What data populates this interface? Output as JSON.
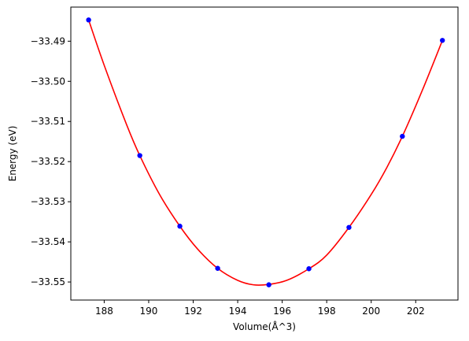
{
  "chart_data": {
    "type": "scatter",
    "title": "",
    "xlabel": "Volume(Å^3)",
    "ylabel": "Energy (eV)",
    "xlim": [
      186.5,
      203.9
    ],
    "ylim": [
      -33.5545,
      -33.4815
    ],
    "xticks": [
      188,
      190,
      192,
      194,
      196,
      198,
      200,
      202
    ],
    "xtick_labels": [
      "188",
      "190",
      "192",
      "194",
      "196",
      "198",
      "200",
      "202"
    ],
    "yticks": [
      -33.49,
      -33.5,
      -33.51,
      -33.52,
      -33.53,
      -33.54,
      -33.55
    ],
    "ytick_labels": [
      "−33.49",
      "−33.50",
      "−33.51",
      "−33.52",
      "−33.53",
      "−33.54",
      "−33.55"
    ],
    "grid": false,
    "series": [
      {
        "kind": "points",
        "color": "#0000ff",
        "x": [
          187.3,
          189.6,
          191.4,
          193.1,
          195.4,
          197.2,
          199.0,
          201.4,
          203.2
        ],
        "y": [
          -33.4847,
          -33.5185,
          -33.5361,
          -33.5466,
          -33.5507,
          -33.5467,
          -33.5364,
          -33.5137,
          -33.4898
        ]
      },
      {
        "kind": "fit-curve",
        "color": "#ff0000",
        "x": [
          187.3,
          188.0,
          189.0,
          189.6,
          190.5,
          191.4,
          192.2,
          193.1,
          194.0,
          194.7,
          195.4,
          196.2,
          197.2,
          198.0,
          199.0,
          200.0,
          200.7,
          201.4,
          202.3,
          203.2
        ],
        "y": [
          -33.4847,
          -33.496,
          -33.5107,
          -33.5185,
          -33.5283,
          -33.5361,
          -33.5418,
          -33.5466,
          -33.5496,
          -33.5507,
          -33.5506,
          -33.5496,
          -33.5467,
          -33.5433,
          -33.5364,
          -33.5282,
          -33.5215,
          -33.5137,
          -33.5022,
          -33.4898
        ]
      }
    ]
  }
}
